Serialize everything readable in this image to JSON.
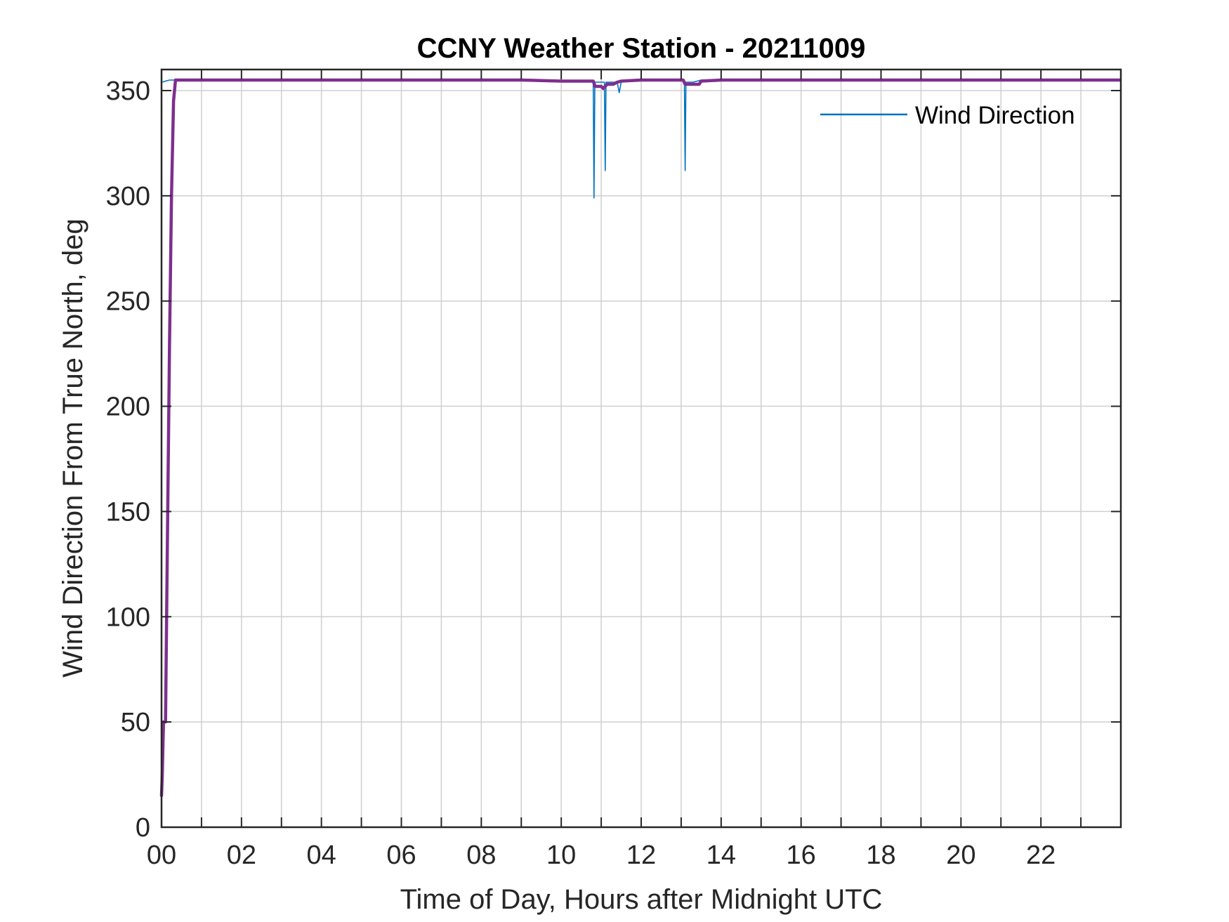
{
  "colors": {
    "raw_series": "#0072BD",
    "smoothed_series": "#7E2F8E",
    "axes": "#262626",
    "grid": "#cfcfcf",
    "background": "#ffffff"
  },
  "chart_data": {
    "type": "line",
    "title": "CCNY Weather Station - 20211009",
    "xlabel": "Time of Day, Hours after Midnight UTC",
    "ylabel": "Wind Direction From True North, deg",
    "xlim": [
      0,
      24
    ],
    "ylim": [
      0,
      360
    ],
    "xticks": [
      0,
      1,
      2,
      3,
      4,
      5,
      6,
      7,
      8,
      9,
      10,
      11,
      12,
      13,
      14,
      15,
      16,
      17,
      18,
      19,
      20,
      21,
      22,
      23,
      24
    ],
    "xtick_labels": [
      "00",
      "02",
      "04",
      "06",
      "08",
      "10",
      "12",
      "14",
      "16",
      "18",
      "20",
      "22"
    ],
    "xtick_label_values": [
      0,
      2,
      4,
      6,
      8,
      10,
      12,
      14,
      16,
      18,
      20,
      22
    ],
    "yticks": [
      0,
      50,
      100,
      150,
      200,
      250,
      300,
      350
    ],
    "ytick_labels": [
      "0",
      "50",
      "100",
      "150",
      "200",
      "250",
      "300",
      "350"
    ],
    "grid": true,
    "legend_position": "top-right",
    "legend_entries": [
      "Wind Direction"
    ],
    "series": [
      {
        "name": "Wind Direction",
        "x": [
          0,
          0.05,
          0.1,
          0.2,
          0.3,
          0.4,
          1.0,
          2.0,
          3.0,
          4.0,
          5.0,
          6.0,
          7.0,
          8.0,
          9.0,
          10.0,
          10.7,
          10.8,
          10.82,
          10.84,
          11.0,
          11.08,
          11.1,
          11.12,
          11.4,
          11.45,
          11.5,
          12.0,
          12.5,
          13.0,
          13.08,
          13.1,
          13.12,
          13.3,
          13.5,
          14.0,
          15.0,
          16.0,
          17.0,
          18.0,
          19.0,
          20.0,
          21.0,
          22.0,
          23.0,
          23.98
        ],
        "y": [
          354,
          354.2,
          354.5,
          355,
          355,
          355,
          355,
          355,
          355,
          354.8,
          354.8,
          354.6,
          354.8,
          354.8,
          354.8,
          354.5,
          354.6,
          354,
          299,
          354,
          354,
          354,
          312,
          354,
          354,
          349,
          354,
          355,
          355,
          355,
          355,
          312,
          354,
          354,
          355,
          355,
          355,
          355,
          355,
          355,
          355,
          355,
          355,
          355,
          355,
          355
        ]
      },
      {
        "x": [
          0,
          0.02,
          0.05,
          0.1,
          0.15,
          0.2,
          0.25,
          0.3,
          0.35,
          0.4,
          0.45,
          1.0,
          2.0,
          3.0,
          4.0,
          5.0,
          6.0,
          7.0,
          8.0,
          9.0,
          10.0,
          10.6,
          10.8,
          10.85,
          11.0,
          11.05,
          11.15,
          11.3,
          11.4,
          11.5,
          12.0,
          12.5,
          13.0,
          13.05,
          13.1,
          13.3,
          13.45,
          13.5,
          14.0,
          15.0,
          16.0,
          17.0,
          18.0,
          19.0,
          20.0,
          21.0,
          22.0,
          23.0,
          23.98
        ],
        "y": [
          15,
          25,
          50,
          50,
          140,
          230,
          300,
          345,
          355,
          355,
          355,
          355,
          355,
          355,
          355,
          355,
          355,
          355,
          355,
          355,
          354.5,
          354.5,
          354.5,
          352,
          352,
          351,
          353,
          353,
          354,
          354.5,
          355,
          355,
          355,
          355,
          353,
          353,
          353,
          354.5,
          355,
          355,
          355,
          355,
          355,
          355,
          355,
          355,
          355,
          355,
          355
        ]
      }
    ]
  }
}
